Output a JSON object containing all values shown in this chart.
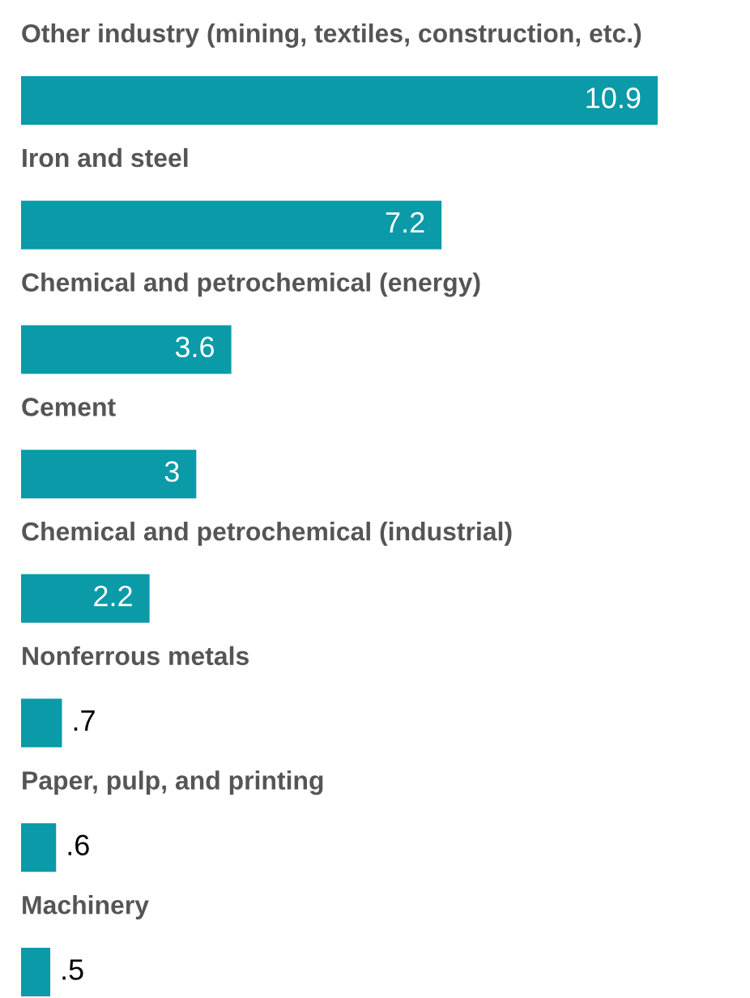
{
  "chart_data": {
    "type": "bar",
    "orientation": "horizontal",
    "categories": [
      "Other industry (mining, textiles, construction, etc.)",
      "Iron and steel",
      "Chemical and petrochemical (energy)",
      "Cement",
      "Chemical and petrochemical (industrial)",
      "Nonferrous metals",
      "Paper, pulp, and printing",
      "Machinery"
    ],
    "values": [
      10.9,
      7.2,
      3.6,
      3,
      2.2,
      0.7,
      0.6,
      0.5
    ],
    "value_labels": [
      "10.9",
      "7.2",
      "3.6",
      "3",
      "2.2",
      ".7",
      ".6",
      ".5"
    ],
    "color": "#0a9aa8"
  }
}
